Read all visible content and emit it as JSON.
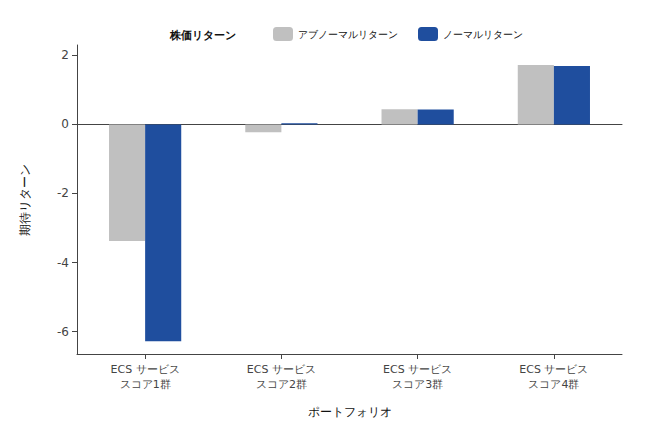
{
  "chart_data": {
    "type": "bar",
    "legend_title": "株価リターン",
    "x_label": "ポートフォリオ",
    "y_label": "期待リターン",
    "categories": [
      "ECS サービス\nスコア1群",
      "ECS サービス\nスコア2群",
      "ECS サービス\nスコア3群",
      "ECS サービス\nスコア4群"
    ],
    "series": [
      {
        "name": "アブノーマルリターン",
        "color": "#c0c0c0",
        "values": [
          -3.38,
          -0.23,
          0.44,
          1.72
        ]
      },
      {
        "name": "ノーマルリターン",
        "color": "#1f4e9e",
        "values": [
          -6.28,
          0.03,
          0.43,
          1.69
        ]
      }
    ],
    "ylim": [
      -6.65,
      2.3
    ],
    "yticks": [
      -6,
      -4,
      -2,
      0,
      2
    ],
    "grid": false,
    "legend": "top"
  }
}
